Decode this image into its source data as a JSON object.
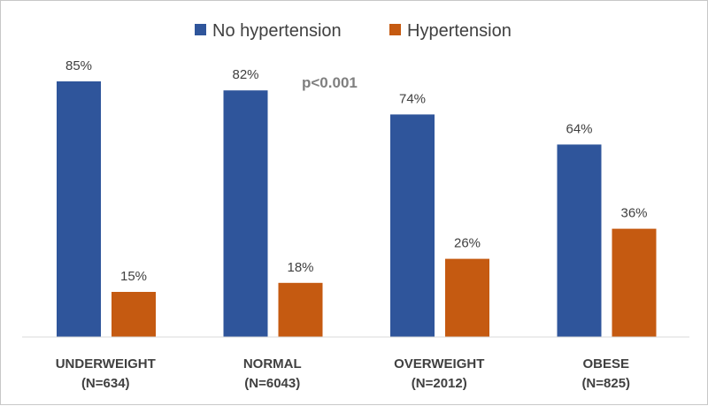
{
  "chart_data": {
    "type": "bar",
    "title": "",
    "xlabel": "",
    "ylabel": "",
    "ylim": [
      0,
      100
    ],
    "grid": false,
    "legend_position": "top-center",
    "categories": [
      {
        "name": "UNDERWEIGHT",
        "n": "(N=634)"
      },
      {
        "name": "NORMAL",
        "n": "(N=6043)"
      },
      {
        "name": "OVERWEIGHT",
        "n": "(N=2012)"
      },
      {
        "name": "OBESE",
        "n": "(N=825)"
      }
    ],
    "series": [
      {
        "name": "No hypertension",
        "color": "#2f559b",
        "values": [
          85,
          82,
          74,
          64
        ],
        "labels": [
          "85%",
          "82%",
          "74%",
          "64%"
        ]
      },
      {
        "name": "Hypertension",
        "color": "#c55a11",
        "values": [
          15,
          18,
          26,
          36
        ],
        "labels": [
          "15%",
          "18%",
          "26%",
          "36%"
        ]
      }
    ],
    "annotations": [
      {
        "text": "p<0.001"
      }
    ],
    "axis_color": "#d9d9d9"
  }
}
